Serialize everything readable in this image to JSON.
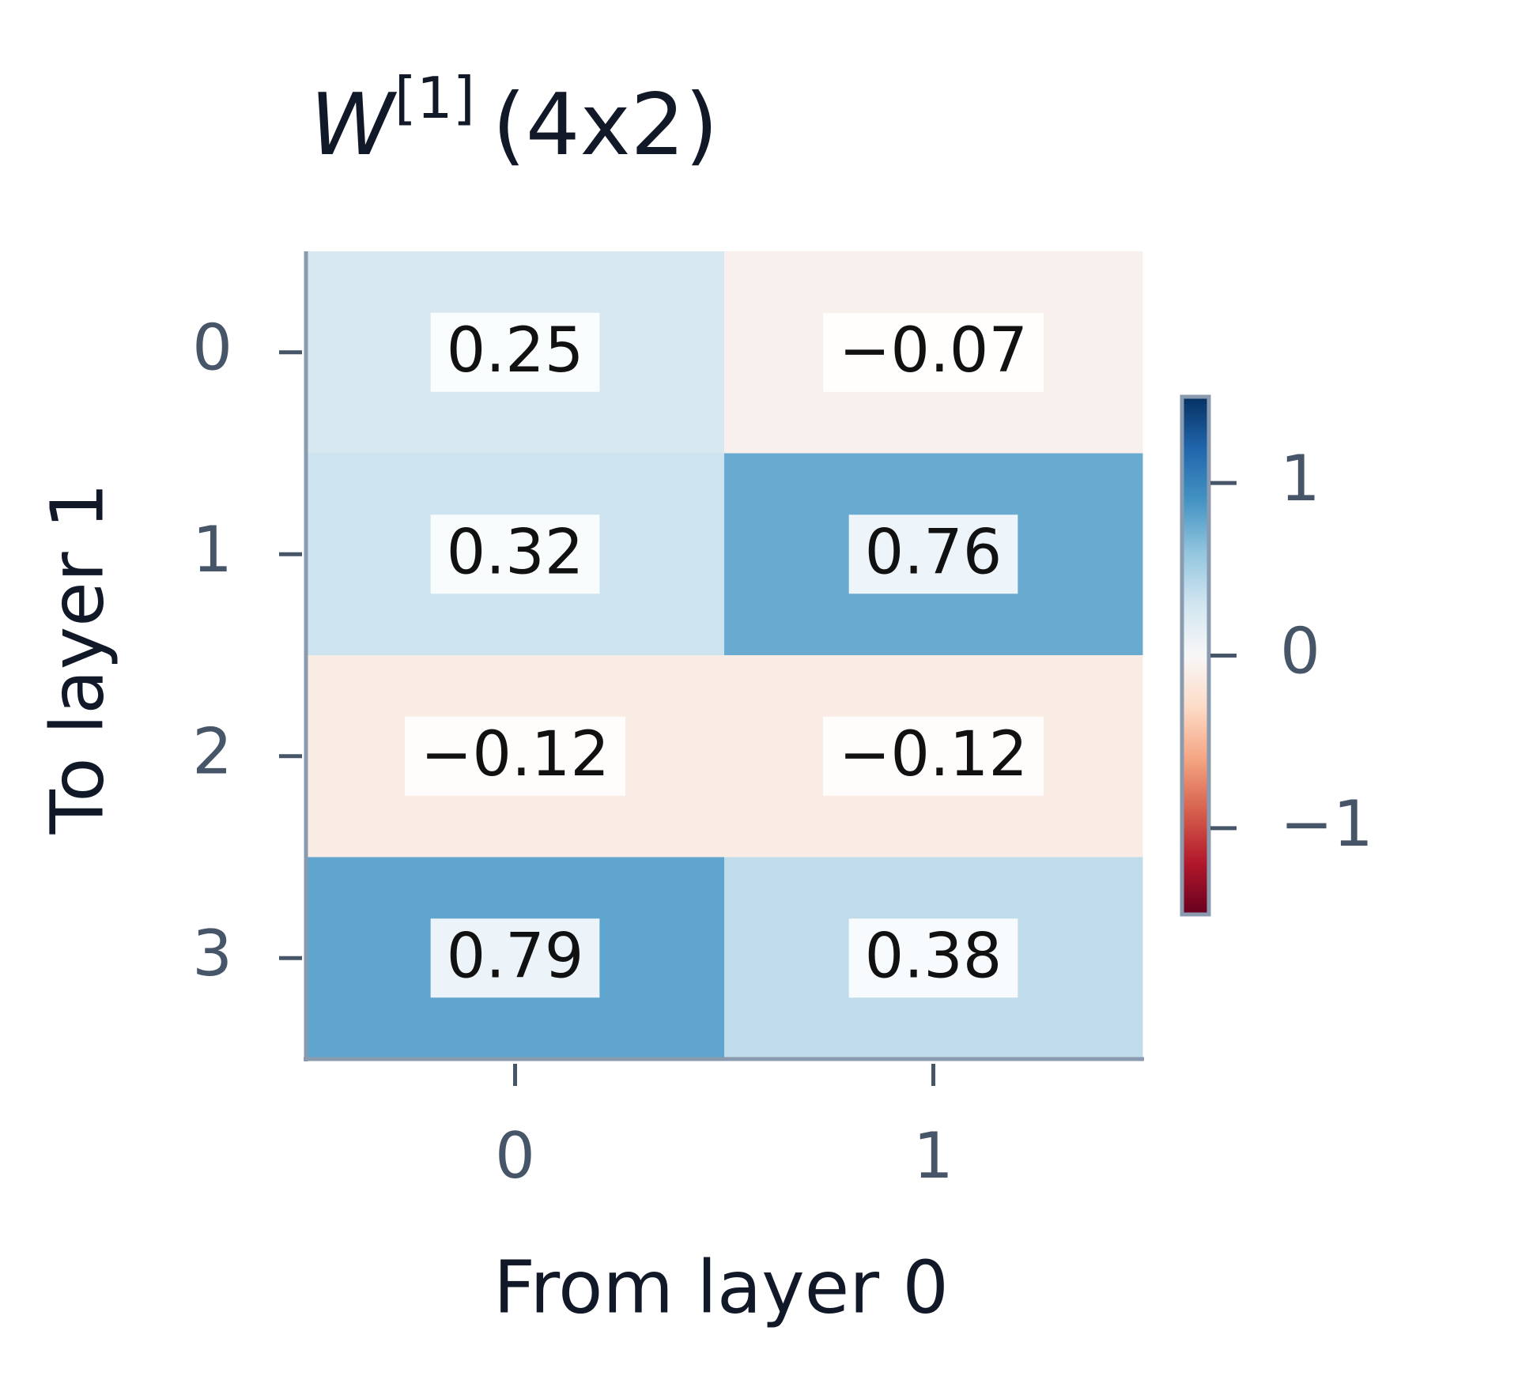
{
  "chart_data": {
    "type": "heatmap",
    "title": "W",
    "title_superscript": "[1]",
    "title_suffix": "(4x2)",
    "x_label": "From layer 0",
    "y_label": "To layer 1",
    "x_categories": [
      "0",
      "1"
    ],
    "y_categories": [
      "0",
      "1",
      "2",
      "3"
    ],
    "values": [
      [
        0.25,
        -0.07
      ],
      [
        0.32,
        0.76
      ],
      [
        -0.12,
        -0.12
      ],
      [
        0.79,
        0.38
      ]
    ],
    "value_labels": [
      [
        "0.25",
        "−0.07"
      ],
      [
        "0.32",
        "0.76"
      ],
      [
        "−0.12",
        "−0.12"
      ],
      [
        "0.79",
        "0.38"
      ]
    ],
    "colormap": "RdBu",
    "clim": [
      -1.5,
      1.5
    ],
    "colorbar_ticks": [
      1,
      0,
      {
        "value": -1,
        "label": "−1"
      }
    ]
  }
}
